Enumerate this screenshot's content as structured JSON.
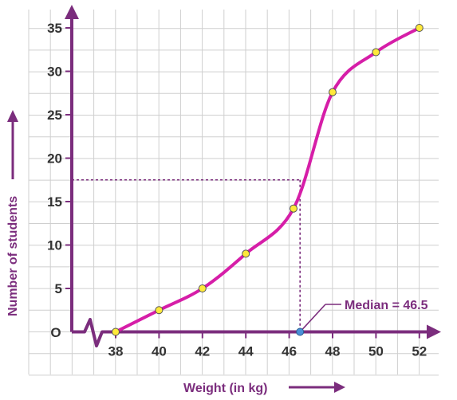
{
  "chart_data": {
    "type": "line",
    "xlabel": "Weight (in kg)",
    "ylabel": "Number of students",
    "origin_label": "O",
    "x_ticks": [
      38,
      40,
      42,
      44,
      46,
      48,
      50,
      52
    ],
    "y_ticks": [
      5,
      10,
      15,
      20,
      25,
      30,
      35
    ],
    "xlim": [
      36,
      53
    ],
    "ylim": [
      0,
      37
    ],
    "grid": true,
    "series": [
      {
        "x": [
          38,
          40,
          42,
          44,
          46.2,
          48,
          50,
          52
        ],
        "y": [
          0,
          2.5,
          5,
          9,
          14.2,
          27.6,
          32.2,
          35
        ]
      }
    ],
    "median": {
      "x": 46.5,
      "y": 17.5,
      "label": "Median = 46.5"
    },
    "colors": {
      "axis": "#7b2d7d",
      "curve": "#d61ea8",
      "point": "#ffe93a",
      "median_point": "#4a90d9",
      "grid": "#cfcfcf"
    }
  }
}
